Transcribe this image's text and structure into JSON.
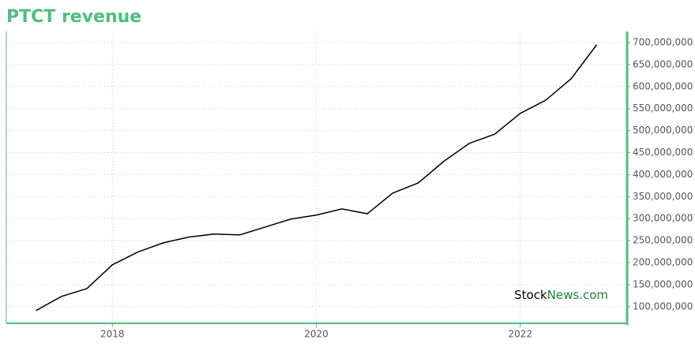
{
  "chart_data": {
    "type": "line",
    "title": "PTCT revenue",
    "watermark": [
      "Stock",
      "News.com"
    ],
    "x": [
      2017.25,
      2017.5,
      2017.75,
      2018,
      2018.25,
      2018.5,
      2018.75,
      2019,
      2019.25,
      2019.5,
      2019.75,
      2020,
      2020.25,
      2020.5,
      2020.75,
      2021,
      2021.25,
      2021.5,
      2021.75,
      2022,
      2022.25,
      2022.5,
      2022.75
    ],
    "series": [
      {
        "color": "#000000",
        "values": [
          91000000,
          123000000,
          141000000,
          195000000,
          224000000,
          245000000,
          258000000,
          265000000,
          263000000,
          281000000,
          299000000,
          308000000,
          322000000,
          311000000,
          358000000,
          381000000,
          430000000,
          471000000,
          492000000,
          539000000,
          569000000,
          618000000,
          695000000
        ]
      }
    ],
    "xlim": [
      2016.96,
      2023.04
    ],
    "xticks": [
      2018,
      2020,
      2022
    ],
    "ylim": [
      62000000,
      725000000
    ],
    "yticks": [
      {
        "value": 100000000,
        "label": "100,000,000"
      },
      {
        "value": 150000000,
        "label": "150,000,000"
      },
      {
        "value": 200000000,
        "label": "200,000,000"
      },
      {
        "value": 250000000,
        "label": "250,000,000"
      },
      {
        "value": 300000000,
        "label": "300,000,000"
      },
      {
        "value": 350000000,
        "label": "350,000,000"
      },
      {
        "value": 400000000,
        "label": "400,000,000"
      },
      {
        "value": 450000000,
        "label": "450,000,000"
      },
      {
        "value": 500000000,
        "label": "500,000,000"
      },
      {
        "value": 550000000,
        "label": "550,000,000"
      },
      {
        "value": 600000000,
        "label": "600,000,000"
      },
      {
        "value": 650000000,
        "label": "650,000,000"
      },
      {
        "value": 700000000,
        "label": "700,000,000"
      }
    ],
    "grid": true
  }
}
